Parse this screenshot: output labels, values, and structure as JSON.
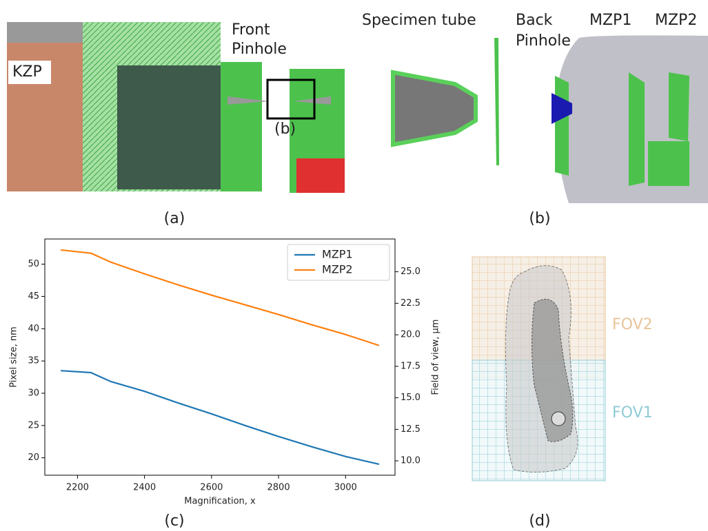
{
  "panel_a": {
    "labels": [
      "KZP",
      "Front",
      "Pinhole",
      "(b)"
    ],
    "caption": "(a)"
  },
  "panel_b": {
    "labels": [
      "Specimen tube",
      "Back",
      "Pinhole",
      "MZP1",
      "MZP2"
    ],
    "caption": "(b)"
  },
  "panel_d": {
    "labels": [
      "FOV2",
      "FOV1"
    ],
    "caption": "(d)"
  },
  "chart_caption": "(c)",
  "chart_data": {
    "type": "line",
    "x": [
      2150,
      2240,
      2300,
      2400,
      2500,
      2600,
      2700,
      2800,
      2900,
      3000,
      3100
    ],
    "series": [
      {
        "name": "MZP1",
        "color": "#1f77b4",
        "values": [
          33.5,
          33.2,
          31.8,
          30.3,
          28.5,
          26.8,
          25.0,
          23.3,
          21.7,
          20.2,
          19.0
        ]
      },
      {
        "name": "MZP2",
        "color": "#ff7f0e",
        "values": [
          52.2,
          51.7,
          50.3,
          48.5,
          46.8,
          45.2,
          43.7,
          42.2,
          40.6,
          39.1,
          37.4
        ]
      }
    ],
    "xlabel": "Magnification, x",
    "ylabel": "Pixel size, nm",
    "y2label": "Field of view, μm",
    "xlim": [
      2102.5,
      3147.5
    ],
    "xticks": [
      2200,
      2400,
      2600,
      2800,
      3000
    ],
    "ylim": [
      17.3,
      53.9
    ],
    "yticks": [
      20,
      25,
      30,
      35,
      40,
      45,
      50
    ],
    "y2lim": [
      8.86,
      27.6
    ],
    "y2ticks": [
      {
        "value": 10,
        "label": "10.0"
      },
      12.5,
      {
        "value": 15,
        "label": "15.0"
      },
      17.5,
      {
        "value": 20,
        "label": "20.0"
      },
      22.5,
      {
        "value": 25,
        "label": "25.0"
      }
    ],
    "legend": "upper right"
  }
}
